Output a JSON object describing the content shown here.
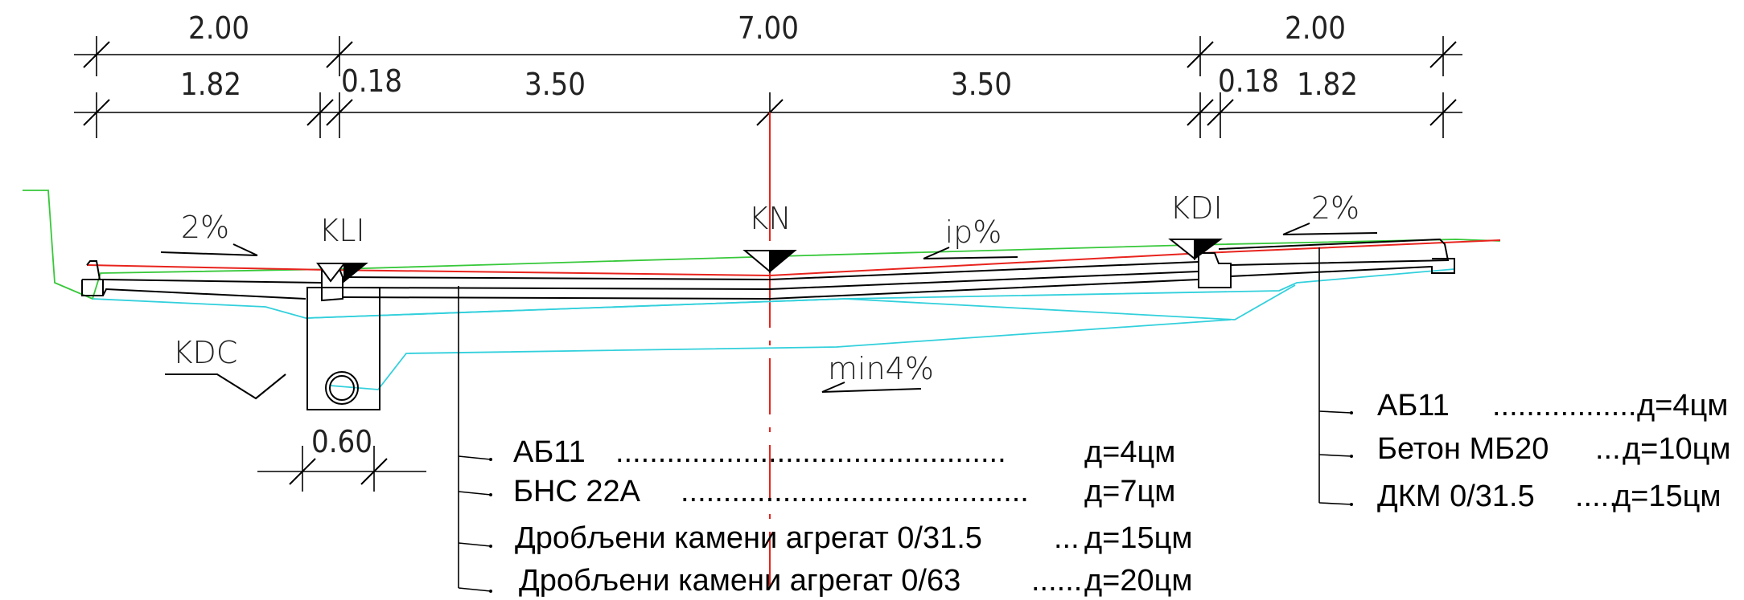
{
  "dimensions": {
    "top_row": [
      "2.00",
      "7.00",
      "2.00"
    ],
    "second_row": [
      "1.82",
      "0.18",
      "3.50",
      "3.50",
      "0.18",
      "1.82"
    ],
    "channel_width": "0.60"
  },
  "points": {
    "left_edge": "KLI",
    "axis": "KN",
    "right_edge": "KDI",
    "drain": "KDC"
  },
  "slopes": {
    "left_shoulder": "2%",
    "right_shoulder": "2%",
    "carriageway": "ip%",
    "drainage": "min4%"
  },
  "roadway_layers": [
    {
      "name": "АБ11",
      "dots": "..............................................",
      "thickness": "д=4цм"
    },
    {
      "name": "БНС 22А",
      "dots": ".........................................",
      "thickness": "д=7цм"
    },
    {
      "name": "Дробљени камени агрегат 0/31.5",
      "dots": "...",
      "thickness": "д=15цм"
    },
    {
      "name": "Дробљени камени агрегат 0/63",
      "dots": "......",
      "thickness": "д=20цм"
    }
  ],
  "sidewalk_layers": [
    {
      "name": "АБ11",
      "dots": ".................",
      "thickness": "д=4цм"
    },
    {
      "name": "Бетон МБ20",
      "dots": "...",
      "thickness": "д=10цм"
    },
    {
      "name": "ДКМ 0/31.5",
      "dots": ".....",
      "thickness": "д=15цм"
    }
  ],
  "colors": {
    "design_line": "#e8231d",
    "terrain": "#37c83a",
    "subgrade": "#32d0dc",
    "structure": "#000000"
  }
}
